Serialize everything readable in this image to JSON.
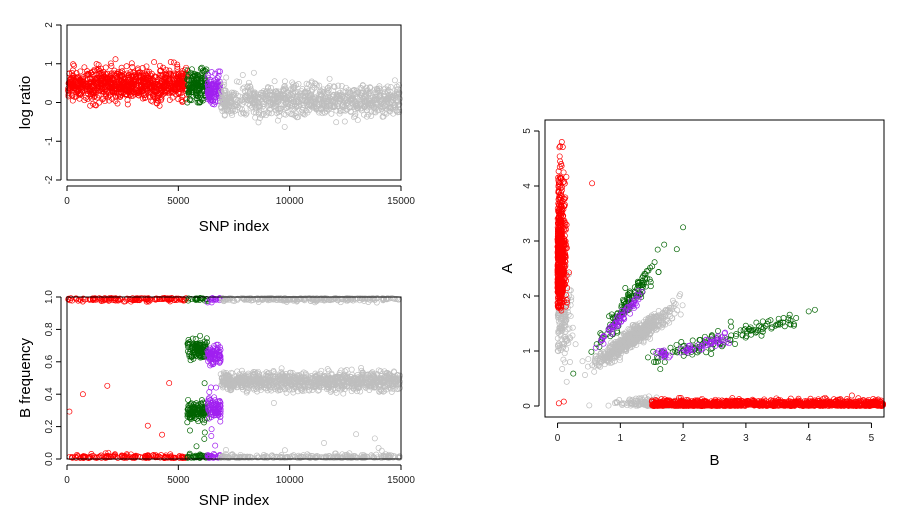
{
  "colors": {
    "red": "#ff0000",
    "darkgreen": "#006400",
    "purple": "#a020f0",
    "grey": "#bebebe",
    "axis": "#000000",
    "background": "#ffffff"
  },
  "chart_data": [
    {
      "type": "scatter",
      "title": "",
      "xlabel": "SNP index",
      "ylabel": "log ratio",
      "xlim": [
        0,
        15000
      ],
      "ylim": [
        -2,
        2
      ],
      "xticks": [
        "0",
        "5000",
        "10000",
        "15000"
      ],
      "yticks": [
        "-2",
        "-1",
        "0",
        "1",
        "2"
      ],
      "grid": false,
      "series": [
        {
          "color": "red",
          "x_range": [
            0,
            5400
          ],
          "y_center": 0.45,
          "y_spread": [
            -0.35,
            1.5
          ]
        },
        {
          "color": "darkgreen",
          "x_range": [
            5400,
            6300
          ],
          "y_center": 0.45,
          "y_spread": [
            0.0,
            1.0
          ]
        },
        {
          "color": "purple",
          "x_range": [
            6300,
            6900
          ],
          "y_center": 0.35,
          "y_spread": [
            -0.05,
            0.8
          ]
        },
        {
          "color": "grey",
          "x_range": [
            6900,
            15000
          ],
          "y_center": 0.05,
          "y_spread": [
            -0.8,
            0.85
          ]
        }
      ]
    },
    {
      "type": "scatter",
      "title": "",
      "xlabel": "SNP index",
      "ylabel": "B frequency",
      "xlim": [
        0,
        15000
      ],
      "ylim": [
        0,
        1
      ],
      "xticks": [
        "0",
        "5000",
        "10000",
        "15000"
      ],
      "yticks": [
        "0.0",
        "0.2",
        "0.4",
        "0.6",
        "0.8",
        "1.0"
      ],
      "grid": false,
      "series": [
        {
          "color": "red",
          "x_range": [
            0,
            5400
          ],
          "clusters_y": [
            0.0,
            1.0
          ]
        },
        {
          "color": "darkgreen",
          "x_range": [
            5400,
            6300
          ],
          "clusters_y": [
            0.0,
            0.29,
            0.68,
            1.0
          ]
        },
        {
          "color": "purple",
          "x_range": [
            6300,
            6900
          ],
          "clusters_y": [
            0.0,
            0.31,
            0.64,
            1.0
          ]
        },
        {
          "color": "grey",
          "x_range": [
            6900,
            15000
          ],
          "clusters_y": [
            0.0,
            0.48,
            1.0
          ]
        }
      ]
    },
    {
      "type": "scatter",
      "title": "",
      "xlabel": "B",
      "ylabel": "A",
      "xlim": [
        -0.2,
        5.2
      ],
      "ylim": [
        -0.2,
        5.2
      ],
      "xticks": [
        "0",
        "1",
        "2",
        "3",
        "4",
        "5"
      ],
      "yticks": [
        "0",
        "1",
        "2",
        "3",
        "4",
        "5"
      ],
      "grid": false,
      "series": [
        {
          "color": "red",
          "clusters": [
            "B≈0, A 1.6–4.8",
            "A≈0, B 1.5–5.2"
          ]
        },
        {
          "color": "darkgreen",
          "clusters": [
            "B≈1.1, A≈1.9",
            "B≈2.4, A≈1.2"
          ]
        },
        {
          "color": "purple",
          "clusters": [
            "B≈1.0, A≈1.6",
            "B≈2.1, A≈1.0"
          ]
        },
        {
          "color": "grey",
          "clusters": [
            "B≈1.2, A≈1.3",
            "B≈0.1, A≈1.5",
            "B≈1.5, A≈0.1"
          ]
        }
      ]
    }
  ]
}
